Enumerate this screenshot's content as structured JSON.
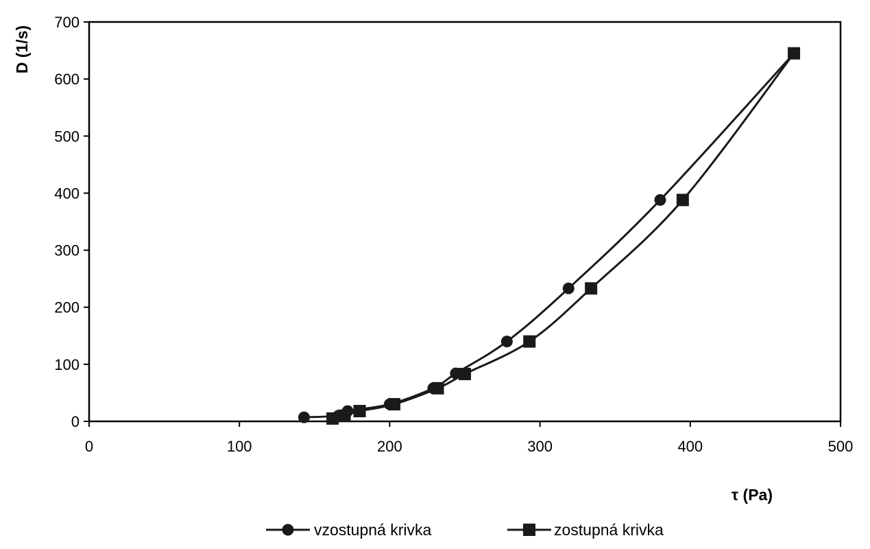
{
  "chart_data": {
    "type": "scatter",
    "xlabel": "τ (Pa)",
    "ylabel": "D (1/s)",
    "xlim": [
      0,
      500
    ],
    "ylim": [
      0,
      700
    ],
    "xticks": [
      "0",
      "100",
      "200",
      "300",
      "400",
      "500"
    ],
    "yticks": [
      "0",
      "100",
      "200",
      "300",
      "400",
      "500",
      "600",
      "700"
    ],
    "grid": false,
    "legend_position": "bottom",
    "series": [
      {
        "name": "vzostupná krivka",
        "marker": "circle",
        "color": "#1a1a1a",
        "points": [
          [
            143,
            7
          ],
          [
            166,
            10
          ],
          [
            172,
            18
          ],
          [
            200,
            30
          ],
          [
            229,
            58
          ],
          [
            244,
            84
          ],
          [
            278,
            140
          ],
          [
            319,
            233
          ],
          [
            380,
            388
          ],
          [
            469,
            645
          ]
        ]
      },
      {
        "name": "zostupná krivka",
        "marker": "square",
        "color": "#1a1a1a",
        "points": [
          [
            162,
            5
          ],
          [
            170,
            10
          ],
          [
            180,
            18
          ],
          [
            203,
            30
          ],
          [
            232,
            58
          ],
          [
            250,
            83
          ],
          [
            293,
            140
          ],
          [
            334,
            233
          ],
          [
            395,
            388
          ],
          [
            469,
            645
          ]
        ]
      }
    ]
  }
}
